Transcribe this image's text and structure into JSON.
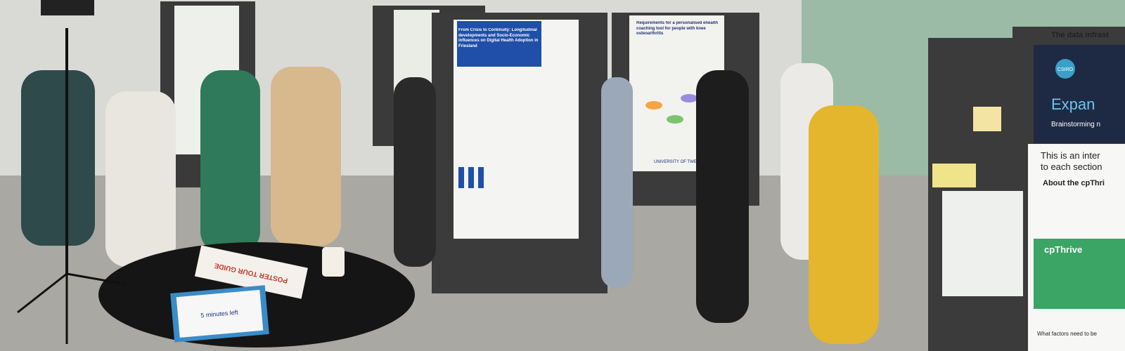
{
  "posters": [
    {
      "title": "From Crisis to Continuity: Longitudinal developments and Socio-Economic influences on Digital Health Adoption in Friesland"
    },
    {
      "title": "Requirements for a personalised ehealth coaching tool for people with knee osteoarthritis",
      "logo": "UNIVERSITY OF TWENTE"
    },
    {
      "title": "The data infrast"
    },
    {
      "logo": "CSIRO",
      "title": "Expan",
      "subtitle": "Brainstorming n",
      "intro": "This is an inter",
      "intro2": "to each section",
      "heading": "About the cpThri",
      "brand": "cpThrive",
      "question": "What factors need to be"
    }
  ],
  "table_signs": [
    {
      "text": "POSTER TOUR GUIDE"
    },
    {
      "text": "5 minutes left"
    }
  ]
}
